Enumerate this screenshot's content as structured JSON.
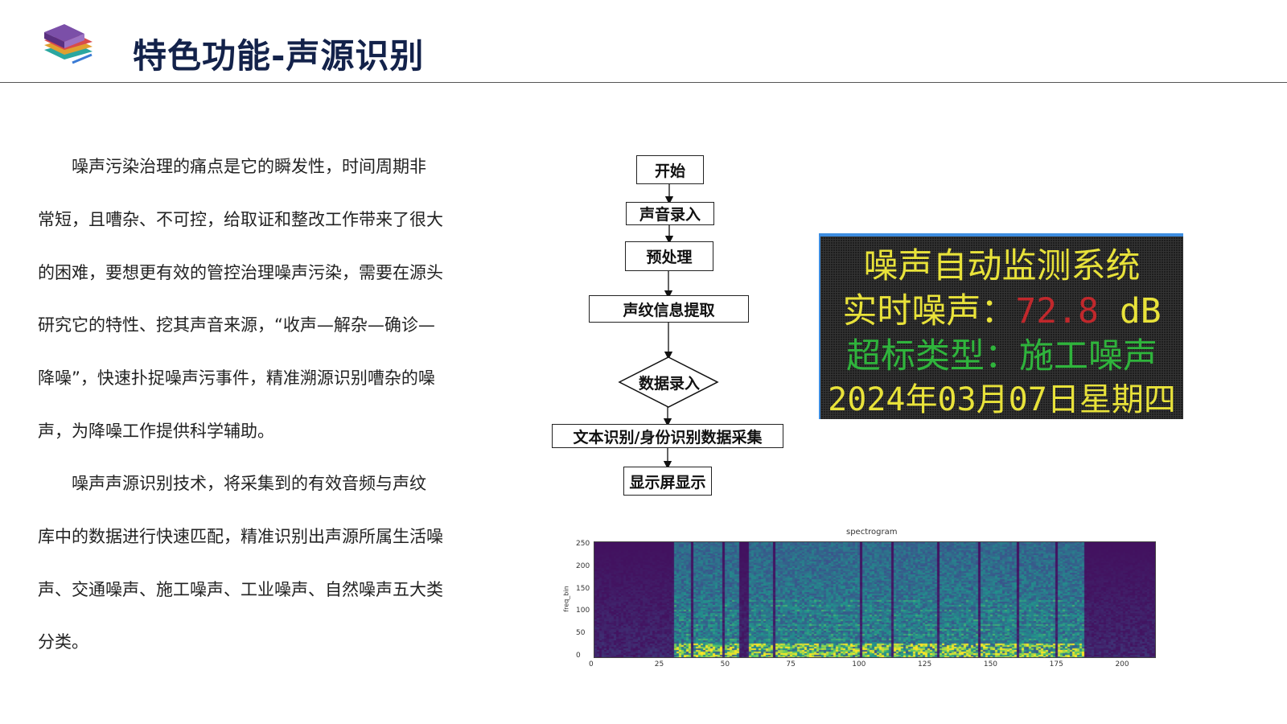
{
  "header": {
    "title": "特色功能-声源识别",
    "logo_icon": "stacked-books-icon"
  },
  "paragraphs": [
    [
      "　　噪声污染治理的痛点是它的瞬发性，时间周期非",
      "常短，且嘈杂、不可控，给取证和整改工作带来了很大",
      "的困难，要想更有效的管控治理噪声污染，需要在源头",
      "研究它的特性、挖其声音来源，“收声—解杂—确诊—",
      "降噪”，快速扑捉噪声污事件，精准溯源识别嘈杂的噪",
      "声，为降噪工作提供科学辅助。"
    ],
    [
      "　　噪声声源识别技术，将采集到的有效音频与声纹",
      "库中的数据进行快速匹配，精准识别出声源所属生活噪",
      "声、交通噪声、施工噪声、工业噪声、自然噪声五大类",
      "分类。"
    ]
  ],
  "flowchart": {
    "steps": [
      "开始",
      "声音录入",
      "预处理",
      "声纹信息提取",
      "数据录入",
      "文本识别/身份识别数据采集",
      "显示屏显示"
    ]
  },
  "led_display": {
    "line1": "噪声自动监测系统",
    "line2_label": "实时噪声：",
    "line2_value": "72.8",
    "line2_unit": "dB",
    "line3": "超标类型：施工噪声",
    "line4": "2024年03月07日星期四",
    "colors": {
      "yellow": "#e8e23a",
      "red": "#c0282c",
      "green": "#2fb43c"
    }
  },
  "chart_data": {
    "type": "heatmap",
    "title": "spectrogram",
    "xlabel": "",
    "ylabel": "freq_bin",
    "xlim": [
      0,
      213
    ],
    "ylim": [
      0,
      257
    ],
    "x_ticks": [
      "0",
      "25",
      "50",
      "75",
      "100",
      "125",
      "150",
      "175",
      "200"
    ],
    "y_ticks": [
      "0",
      "50",
      "100",
      "150",
      "200",
      "250"
    ],
    "colormap": "viridis",
    "active_segments": [
      [
        30,
        36
      ],
      [
        37,
        48
      ],
      [
        49,
        55
      ],
      [
        58,
        67
      ],
      [
        68,
        100
      ],
      [
        101,
        112
      ],
      [
        113,
        130
      ],
      [
        131,
        145
      ],
      [
        146,
        160
      ],
      [
        161,
        175
      ],
      [
        176,
        186
      ]
    ]
  }
}
